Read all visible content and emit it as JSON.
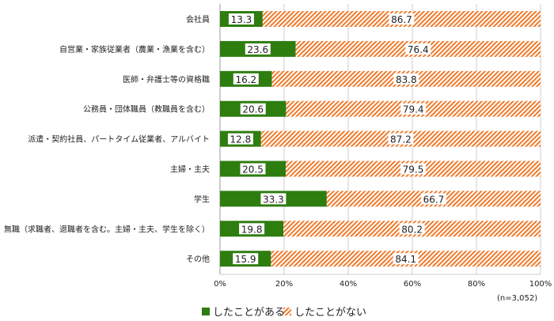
{
  "chart_data": {
    "type": "bar",
    "stacked": true,
    "orientation": "horizontal",
    "categories": [
      "会社員",
      "自営業・家族従業者（農業・漁業を含む）",
      "医師・弁護士等の資格職",
      "公務員・団体職員（教職員を含む）",
      "派遣・契約社員、パートタイム従業者、アルバイト",
      "主婦・主夫",
      "学生",
      "無職（求職者、退職者を含む。主婦・主夫、学生を除く）",
      "その他"
    ],
    "series": [
      {
        "name": "したことがある",
        "color": "#2e7d0f",
        "values": [
          13.3,
          23.6,
          16.2,
          20.6,
          12.8,
          20.5,
          33.3,
          19.8,
          15.9
        ]
      },
      {
        "name": "したことがない",
        "color": "#f07a2a",
        "pattern": "diagonal-stripes",
        "values": [
          86.7,
          76.4,
          83.8,
          79.4,
          87.2,
          79.5,
          66.7,
          80.2,
          84.1
        ]
      }
    ],
    "xlim": [
      0,
      100
    ],
    "xticks": [
      "0%",
      "20%",
      "40%",
      "60%",
      "80%",
      "100%"
    ],
    "grid": true,
    "legend": "bottom-left",
    "note": "(n=3,052)"
  }
}
